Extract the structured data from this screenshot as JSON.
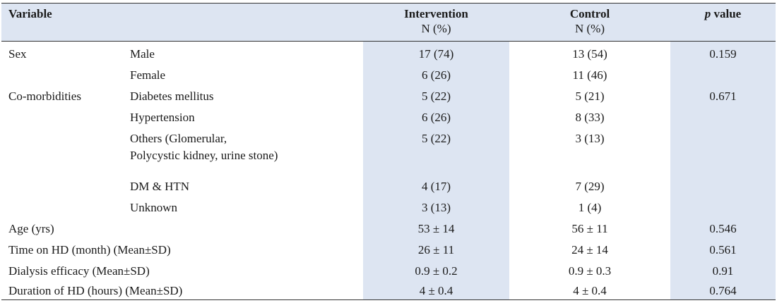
{
  "header": {
    "variable": "Variable",
    "intervention": "Intervention",
    "intervention_unit": "N (%)",
    "control": "Control",
    "control_unit": "N (%)",
    "p_italic": "p",
    "p_rest": " value"
  },
  "rows": [
    {
      "variable": "Sex",
      "sub": "Male",
      "intervention": "17 (74)",
      "control": "13 (54)",
      "p": "0.159"
    },
    {
      "variable": "",
      "sub": "Female",
      "intervention": "6 (26)",
      "control": "11 (46)",
      "p": ""
    },
    {
      "variable": "Co-morbidities",
      "sub": "Diabetes mellitus",
      "intervention": "5 (22)",
      "control": "5 (21)",
      "p": "0.671"
    },
    {
      "variable": "",
      "sub": "Hypertension",
      "intervention": "6 (26)",
      "control": "8 (33)",
      "p": ""
    },
    {
      "variable": "",
      "sub": "Others (Glomerular,",
      "sub2": "Polycystic kidney, urine stone)",
      "intervention": "5 (22)",
      "control": "3 (13)",
      "p": ""
    },
    {
      "variable": "",
      "sub": "DM & HTN",
      "intervention": "4 (17)",
      "control": "7 (29)",
      "p": ""
    },
    {
      "variable": "",
      "sub": "Unknown",
      "intervention": "3 (13)",
      "control": "1 (4)",
      "p": ""
    },
    {
      "variable": "Age (yrs)",
      "sub": "",
      "intervention": "53 ± 14",
      "control": "56 ± 11",
      "p": "0.546"
    },
    {
      "variable": "Time on HD (month) (Mean±SD)",
      "sub": "",
      "intervention": "26 ± 11",
      "control": "24 ± 14",
      "p": "0.561"
    },
    {
      "variable": "Dialysis efficacy (Mean±SD)",
      "sub": "",
      "intervention": "0.9 ± 0.2",
      "control": "0.9 ± 0.3",
      "p": "0.91"
    },
    {
      "variable": "Duration of HD (hours) (Mean±SD)",
      "sub": "",
      "intervention": "4 ± 0.4",
      "control": "4 ± 0.4",
      "p": "0.764"
    }
  ]
}
